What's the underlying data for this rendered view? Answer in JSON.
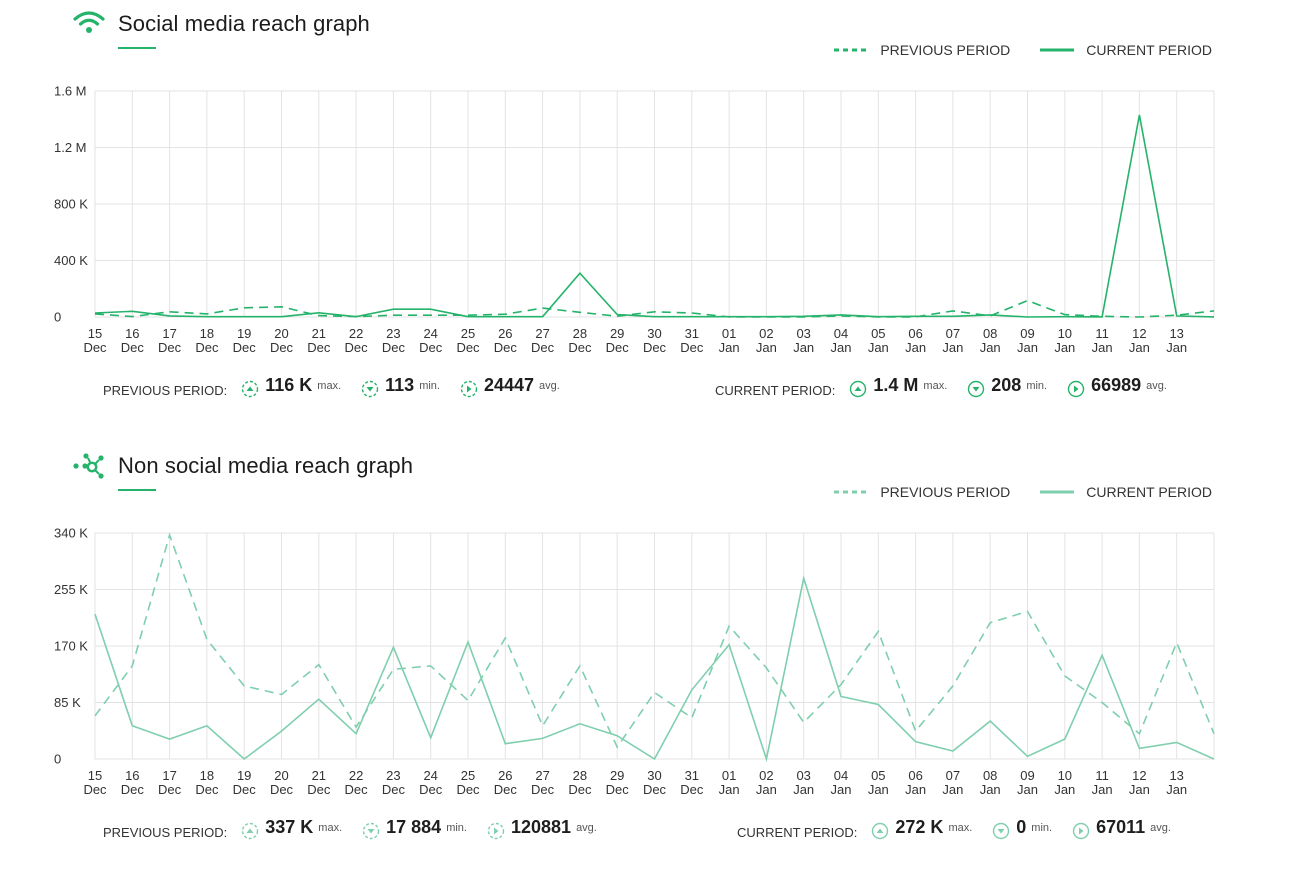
{
  "charts": [
    {
      "id": "social",
      "title": "Social media reach graph",
      "icon": "wifi-icon",
      "accent": "#25b36b",
      "legend": {
        "previous": "PREVIOUS PERIOD",
        "current": "CURRENT PERIOD"
      },
      "stats": {
        "previous": {
          "label": "PREVIOUS PERIOD:",
          "max": "116 K",
          "max_unit": "max.",
          "min": "113",
          "min_unit": "min.",
          "avg": "24447",
          "avg_unit": "avg."
        },
        "current": {
          "label": "CURRENT PERIOD:",
          "max": "1.4 M",
          "max_unit": "max.",
          "min": "208",
          "min_unit": "min.",
          "avg": "66989",
          "avg_unit": "avg."
        }
      }
    },
    {
      "id": "nonsocial",
      "title": "Non social media reach graph",
      "icon": "network-icon",
      "accent": "#7fcfae",
      "legend": {
        "previous": "PREVIOUS PERIOD",
        "current": "CURRENT PERIOD"
      },
      "stats": {
        "previous": {
          "label": "PREVIOUS PERIOD:",
          "max": "337 K",
          "max_unit": "max.",
          "min": "17 884",
          "min_unit": "min.",
          "avg": "120881",
          "avg_unit": "avg."
        },
        "current": {
          "label": "CURRENT PERIOD:",
          "max": "272 K",
          "max_unit": "max.",
          "min": "0",
          "min_unit": "min.",
          "avg": "67011",
          "avg_unit": "avg."
        }
      }
    }
  ],
  "chart_data": [
    {
      "type": "line",
      "title": "Social media reach graph",
      "x": [
        [
          "15",
          "Dec"
        ],
        [
          "16",
          "Dec"
        ],
        [
          "17",
          "Dec"
        ],
        [
          "18",
          "Dec"
        ],
        [
          "19",
          "Dec"
        ],
        [
          "20",
          "Dec"
        ],
        [
          "21",
          "Dec"
        ],
        [
          "22",
          "Dec"
        ],
        [
          "23",
          "Dec"
        ],
        [
          "24",
          "Dec"
        ],
        [
          "25",
          "Dec"
        ],
        [
          "26",
          "Dec"
        ],
        [
          "27",
          "Dec"
        ],
        [
          "28",
          "Dec"
        ],
        [
          "29",
          "Dec"
        ],
        [
          "30",
          "Dec"
        ],
        [
          "31",
          "Dec"
        ],
        [
          "01",
          "Jan"
        ],
        [
          "02",
          "Jan"
        ],
        [
          "03",
          "Jan"
        ],
        [
          "04",
          "Jan"
        ],
        [
          "05",
          "Jan"
        ],
        [
          "06",
          "Jan"
        ],
        [
          "07",
          "Jan"
        ],
        [
          "08",
          "Jan"
        ],
        [
          "09",
          "Jan"
        ],
        [
          "10",
          "Jan"
        ],
        [
          "11",
          "Jan"
        ],
        [
          "12",
          "Jan"
        ],
        [
          "13",
          "Jan"
        ],
        [
          "",
          ""
        ]
      ],
      "yticks": [
        0,
        400000,
        800000,
        1200000,
        1600000
      ],
      "ytick_labels": [
        "0",
        "400 K",
        "800 K",
        "1.2 M",
        "1.6 M"
      ],
      "ylim": [
        0,
        1600000
      ],
      "series": [
        {
          "name": "PREVIOUS PERIOD",
          "style": "dashed",
          "color": "#25b36b",
          "values": [
            22000,
            3000,
            37000,
            22000,
            65000,
            72000,
            10000,
            3000,
            13000,
            13000,
            13000,
            20000,
            63000,
            33000,
            6000,
            37000,
            28000,
            1000,
            1000,
            1000,
            8000,
            1000,
            1000,
            43000,
            8000,
            116000,
            17000,
            5000,
            113,
            13000,
            43000
          ]
        },
        {
          "name": "CURRENT PERIOD",
          "style": "solid",
          "color": "#25b36b",
          "values": [
            28000,
            40000,
            8000,
            2000,
            2000,
            2000,
            30000,
            2000,
            55000,
            55000,
            2000,
            2000,
            2000,
            310000,
            18000,
            2000,
            2000,
            2000,
            2000,
            5000,
            15000,
            2000,
            5000,
            5000,
            15000,
            208,
            2000,
            1000,
            1430000,
            8000,
            1000
          ]
        }
      ]
    },
    {
      "type": "line",
      "title": "Non social media reach graph",
      "x": [
        [
          "15",
          "Dec"
        ],
        [
          "16",
          "Dec"
        ],
        [
          "17",
          "Dec"
        ],
        [
          "18",
          "Dec"
        ],
        [
          "19",
          "Dec"
        ],
        [
          "20",
          "Dec"
        ],
        [
          "21",
          "Dec"
        ],
        [
          "22",
          "Dec"
        ],
        [
          "23",
          "Dec"
        ],
        [
          "24",
          "Dec"
        ],
        [
          "25",
          "Dec"
        ],
        [
          "26",
          "Dec"
        ],
        [
          "27",
          "Dec"
        ],
        [
          "28",
          "Dec"
        ],
        [
          "29",
          "Dec"
        ],
        [
          "30",
          "Dec"
        ],
        [
          "31",
          "Dec"
        ],
        [
          "01",
          "Jan"
        ],
        [
          "02",
          "Jan"
        ],
        [
          "03",
          "Jan"
        ],
        [
          "04",
          "Jan"
        ],
        [
          "05",
          "Jan"
        ],
        [
          "06",
          "Jan"
        ],
        [
          "07",
          "Jan"
        ],
        [
          "08",
          "Jan"
        ],
        [
          "09",
          "Jan"
        ],
        [
          "10",
          "Jan"
        ],
        [
          "11",
          "Jan"
        ],
        [
          "12",
          "Jan"
        ],
        [
          "13",
          "Jan"
        ],
        [
          "",
          ""
        ]
      ],
      "yticks": [
        0,
        85000,
        170000,
        255000,
        340000
      ],
      "ytick_labels": [
        "0",
        "85 K",
        "170 K",
        "255 K",
        "340 K"
      ],
      "ylim": [
        0,
        340000
      ],
      "series": [
        {
          "name": "PREVIOUS PERIOD",
          "style": "dashed",
          "color": "#7fcfae",
          "values": [
            65000,
            140000,
            337000,
            180000,
            110000,
            97000,
            142000,
            48000,
            135000,
            140000,
            88000,
            182000,
            50000,
            140000,
            17884,
            100000,
            62000,
            200000,
            137000,
            55000,
            112000,
            192000,
            42000,
            110000,
            205000,
            222000,
            125000,
            85000,
            38000,
            175000,
            38000
          ]
        },
        {
          "name": "CURRENT PERIOD",
          "style": "solid",
          "color": "#7fcfae",
          "values": [
            218000,
            50000,
            30000,
            50000,
            0,
            42000,
            90000,
            38000,
            168000,
            32000,
            176000,
            23000,
            31000,
            53000,
            35000,
            0,
            104000,
            172000,
            0,
            272000,
            94000,
            82000,
            26000,
            12000,
            57000,
            4000,
            30000,
            156000,
            16000,
            25000,
            0
          ]
        }
      ]
    }
  ]
}
